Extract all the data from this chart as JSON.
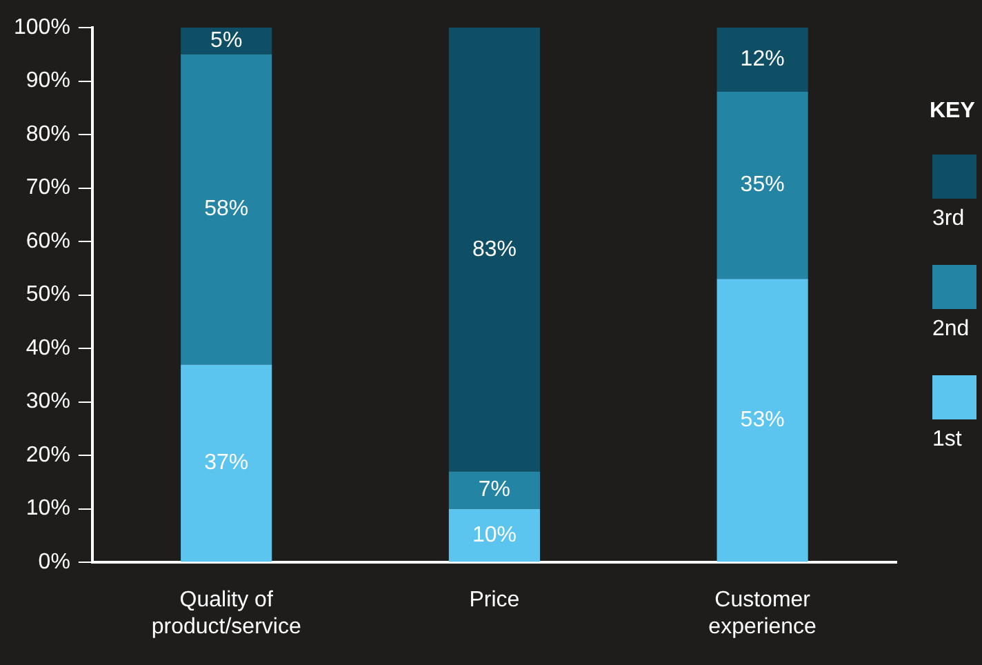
{
  "chart_data": {
    "type": "bar",
    "stacked": true,
    "categories": [
      "Quality of product/service",
      "Price",
      "Customer experience"
    ],
    "series": [
      {
        "name": "1st",
        "color": "#5bc4ef",
        "values": [
          37,
          10,
          53
        ],
        "value_labels": [
          "37%",
          "10%",
          "53%"
        ]
      },
      {
        "name": "2nd",
        "color": "#2484a4",
        "values": [
          58,
          7,
          35
        ],
        "value_labels": [
          "58%",
          "7%",
          "35%"
        ]
      },
      {
        "name": "3rd",
        "color": "#0e4f66",
        "values": [
          5,
          83,
          12
        ],
        "value_labels": [
          "5%",
          "83%",
          "12%"
        ]
      }
    ],
    "ylim": [
      0,
      100
    ],
    "yticks": [
      {
        "value": 0,
        "label": "0%"
      },
      {
        "value": 10,
        "label": "10%"
      },
      {
        "value": 20,
        "label": "20%"
      },
      {
        "value": 30,
        "label": "30%"
      },
      {
        "value": 40,
        "label": "40%"
      },
      {
        "value": 50,
        "label": "50%"
      },
      {
        "value": 60,
        "label": "60%"
      },
      {
        "value": 70,
        "label": "70%"
      },
      {
        "value": 80,
        "label": "80%"
      },
      {
        "value": 90,
        "label": "90%"
      },
      {
        "value": 100,
        "label": "100%"
      }
    ],
    "grid": false,
    "legend": "right",
    "legend_title": "KEY"
  }
}
